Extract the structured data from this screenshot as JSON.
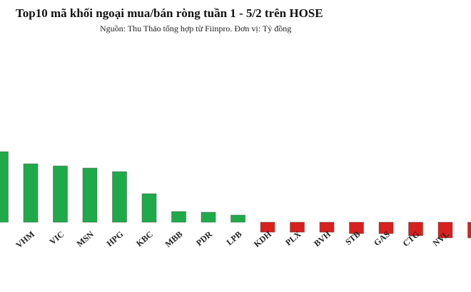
{
  "chart_data": {
    "type": "bar",
    "title": "Top10 mã khối ngoại mua/bán ròng tuần 1 - 5/2 trên HOSE",
    "subtitle": "Nguồn: Thu Thảo tổng hợp từ Fiinpro. Đơn vị: Tỷ đồng",
    "categories": [
      null,
      "VHM",
      "VIC",
      "MSN",
      "HPG",
      "KBC",
      "MBB",
      "PDR",
      "LPB",
      "KDH",
      "PLX",
      "BVH",
      "STB",
      "GAS",
      "CTG",
      "NVL",
      null
    ],
    "values": [
      99,
      82,
      79,
      76,
      71,
      40,
      15,
      14,
      10,
      -14,
      -14,
      -14,
      -16,
      -16,
      -19,
      -22,
      -22
    ],
    "positive_color": "#1faa4a",
    "negative_color": "#d8201f"
  }
}
